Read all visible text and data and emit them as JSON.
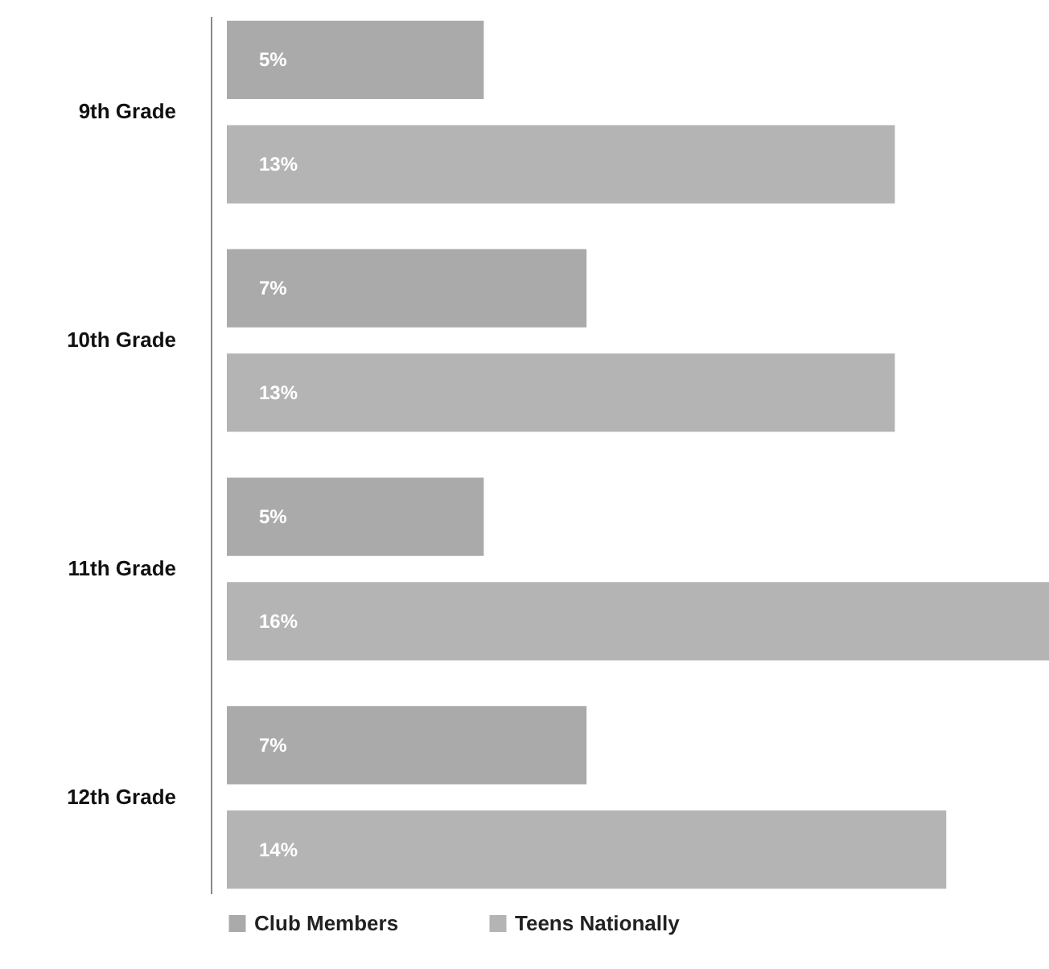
{
  "chart_data": {
    "type": "bar",
    "orientation": "horizontal",
    "categories": [
      "9th Grade",
      "10th Grade",
      "11th Grade",
      "12th Grade"
    ],
    "series": [
      {
        "name": "Club Members",
        "color": "#aaaaaa",
        "values": [
          5,
          7,
          5,
          7
        ],
        "value_labels": [
          "5%",
          "7%",
          "5%",
          "7%"
        ]
      },
      {
        "name": "Teens Nationally",
        "color": "#b4b4b4",
        "values": [
          13,
          13,
          16,
          14
        ],
        "value_labels": [
          "13%",
          "13%",
          "16%",
          "14%"
        ]
      }
    ],
    "legend": "bottom"
  }
}
